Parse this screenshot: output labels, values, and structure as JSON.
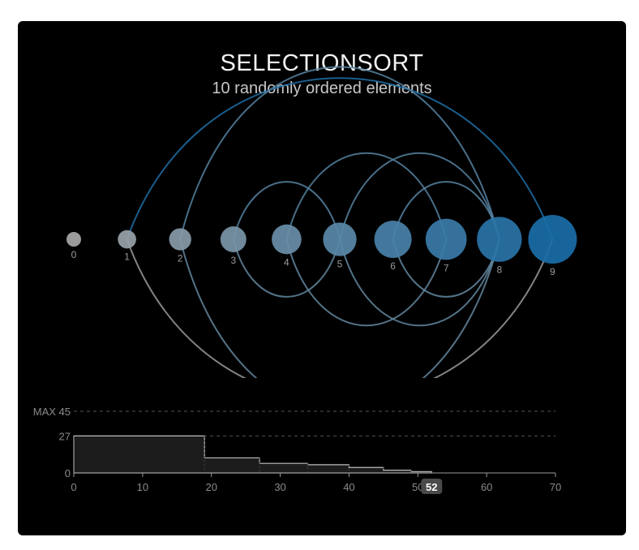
{
  "title": "SELECTIONSORT",
  "subtitle": "10 randomly ordered elements",
  "nodes": [
    {
      "label": "0",
      "size": 0.0
    },
    {
      "label": "1",
      "size": 0.111
    },
    {
      "label": "2",
      "size": 0.222
    },
    {
      "label": "3",
      "size": 0.333
    },
    {
      "label": "4",
      "size": 0.444
    },
    {
      "label": "5",
      "size": 0.556
    },
    {
      "label": "6",
      "size": 0.667
    },
    {
      "label": "7",
      "size": 0.778
    },
    {
      "label": "8",
      "size": 0.889
    },
    {
      "label": "9",
      "size": 1.0
    }
  ],
  "swaps": [
    {
      "from": 1,
      "to": 9,
      "kind": "long"
    },
    {
      "from": 2,
      "to": 8
    },
    {
      "from": 3,
      "to": 5
    },
    {
      "from": 4,
      "to": 7
    },
    {
      "from": 5,
      "to": 8
    },
    {
      "from": 6,
      "to": 8
    }
  ],
  "colors": {
    "small": "#a8a8a8",
    "large": "#1a6ea8",
    "arc_grey": "#9a9a9a",
    "arc_blue": "#1f6fa6",
    "grid": "#555555",
    "hist_fill": "#1c1c1c",
    "hist_stroke": "#bdbdbd"
  },
  "chart_data": {
    "type": "area",
    "x": [
      0,
      19,
      27,
      34,
      40,
      45,
      49,
      52
    ],
    "values": [
      27,
      11,
      7,
      6,
      4,
      2,
      1,
      0
    ],
    "xlim": [
      0,
      70
    ],
    "ylim": [
      0,
      45
    ],
    "xticks": [
      0,
      10,
      20,
      30,
      40,
      50,
      60,
      70
    ],
    "yticks": [
      {
        "value": 0,
        "label": "0"
      },
      {
        "value": 27,
        "label": "27"
      },
      {
        "value": 45,
        "label": "MAX 45"
      }
    ],
    "current_label": "52",
    "grid": "dashed"
  }
}
